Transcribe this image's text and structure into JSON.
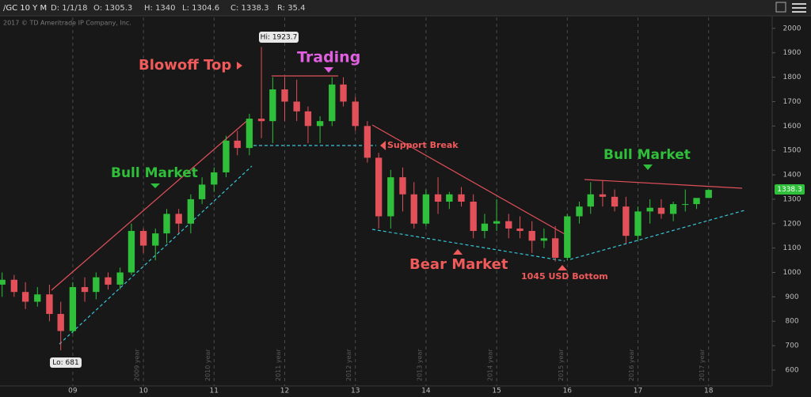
{
  "header": {
    "symbol": "/GC 10 Y M",
    "date": "D: 1/1/18",
    "open": "O: 1305.3",
    "high": "H: 1340",
    "low": "L: 1304.6",
    "close": "C: 1338.3",
    "range": "R: 35.4"
  },
  "chart_data": {
    "type": "candlestick",
    "copyright": "2017 © TD Ameritrade IP Company, Inc.",
    "x": [
      2008.0,
      2008.17,
      2008.33,
      2008.5,
      2008.67,
      2008.83,
      2009.0,
      2009.17,
      2009.33,
      2009.5,
      2009.67,
      2009.83,
      2010.0,
      2010.17,
      2010.33,
      2010.5,
      2010.67,
      2010.83,
      2011.0,
      2011.17,
      2011.33,
      2011.5,
      2011.67,
      2011.83,
      2012.0,
      2012.17,
      2012.33,
      2012.5,
      2012.67,
      2012.83,
      2013.0,
      2013.17,
      2013.33,
      2013.5,
      2013.67,
      2013.83,
      2014.0,
      2014.17,
      2014.33,
      2014.5,
      2014.67,
      2014.83,
      2015.0,
      2015.17,
      2015.33,
      2015.5,
      2015.67,
      2015.83,
      2016.0,
      2016.17,
      2016.33,
      2016.5,
      2016.67,
      2016.83,
      2017.0,
      2017.17,
      2017.33,
      2017.5,
      2017.67,
      2017.83,
      2018.0
    ],
    "open": [
      950,
      970,
      920,
      880,
      910,
      830,
      760,
      940,
      920,
      980,
      950,
      1000,
      1170,
      1110,
      1160,
      1240,
      1200,
      1300,
      1360,
      1410,
      1540,
      1510,
      1630,
      1620,
      1750,
      1700,
      1660,
      1600,
      1620,
      1770,
      1700,
      1600,
      1470,
      1230,
      1390,
      1320,
      1200,
      1320,
      1290,
      1320,
      1290,
      1170,
      1200,
      1210,
      1180,
      1170,
      1130,
      1140,
      1060,
      1230,
      1270,
      1320,
      1310,
      1270,
      1150,
      1250,
      1265,
      1240,
      1280,
      1280,
      1305.3
    ],
    "high": [
      1000,
      990,
      960,
      940,
      950,
      880,
      960,
      980,
      1000,
      1000,
      1020,
      1200,
      1180,
      1180,
      1260,
      1260,
      1320,
      1390,
      1430,
      1560,
      1580,
      1650,
      1923.7,
      1800,
      1800,
      1790,
      1680,
      1640,
      1800,
      1800,
      1720,
      1620,
      1490,
      1420,
      1430,
      1370,
      1340,
      1390,
      1330,
      1350,
      1320,
      1240,
      1300,
      1240,
      1230,
      1210,
      1180,
      1190,
      1240,
      1290,
      1370,
      1375,
      1340,
      1310,
      1270,
      1300,
      1300,
      1290,
      1340,
      1300,
      1340
    ],
    "low": [
      900,
      900,
      850,
      860,
      800,
      681,
      750,
      880,
      890,
      930,
      930,
      990,
      1080,
      1050,
      1120,
      1160,
      1160,
      1280,
      1330,
      1390,
      1480,
      1480,
      1550,
      1530,
      1620,
      1620,
      1530,
      1530,
      1600,
      1680,
      1580,
      1450,
      1180,
      1180,
      1250,
      1180,
      1190,
      1240,
      1260,
      1270,
      1140,
      1140,
      1170,
      1140,
      1140,
      1080,
      1100,
      1045,
      1050,
      1200,
      1240,
      1270,
      1250,
      1120,
      1130,
      1200,
      1220,
      1210,
      1250,
      1260,
      1304.6
    ],
    "close": [
      970,
      920,
      880,
      910,
      830,
      760,
      940,
      920,
      980,
      950,
      1000,
      1170,
      1110,
      1160,
      1240,
      1200,
      1300,
      1360,
      1410,
      1540,
      1510,
      1630,
      1620,
      1750,
      1700,
      1660,
      1600,
      1620,
      1770,
      1700,
      1600,
      1470,
      1230,
      1390,
      1320,
      1200,
      1320,
      1290,
      1320,
      1290,
      1170,
      1200,
      1210,
      1180,
      1170,
      1130,
      1140,
      1060,
      1230,
      1270,
      1320,
      1310,
      1270,
      1150,
      1250,
      1265,
      1240,
      1280,
      1280,
      1305.3,
      1338.3
    ],
    "up_color": "#2fbf3a",
    "down_color": "#e2505a",
    "xlim": [
      2007.97,
      2018.9
    ],
    "xticks": [
      {
        "value": 2009,
        "label": "09"
      },
      {
        "value": 2010,
        "label": "10"
      },
      {
        "value": 2011,
        "label": "11"
      },
      {
        "value": 2012,
        "label": "12"
      },
      {
        "value": 2013,
        "label": "13"
      },
      {
        "value": 2014,
        "label": "14"
      },
      {
        "value": 2015,
        "label": "15"
      },
      {
        "value": 2016,
        "label": "16"
      },
      {
        "value": 2017,
        "label": "17"
      },
      {
        "value": 2018,
        "label": "18"
      }
    ],
    "period_labels": [
      "2009 year",
      "2010 year",
      "2011 year",
      "2012 year",
      "2013 year",
      "2014 year",
      "2015 year",
      "2016 year",
      "2017 year"
    ],
    "ylim": [
      535,
      2045
    ],
    "yticks": [
      600,
      700,
      800,
      900,
      1000,
      1100,
      1200,
      1300,
      1400,
      1500,
      1600,
      1700,
      1800,
      1900,
      2000
    ],
    "grid": true,
    "last_price": "1338.3",
    "annotations": {
      "high": "Hi: 1923.7",
      "low": "Lo: 681",
      "blowoff": "Blowoff Top",
      "trading": "Trading",
      "support": "Support Break",
      "bull1": "Bull Market",
      "bull2": "Bull Market",
      "bear": "Bear Market",
      "bottom": "1045 USD Bottom"
    }
  }
}
